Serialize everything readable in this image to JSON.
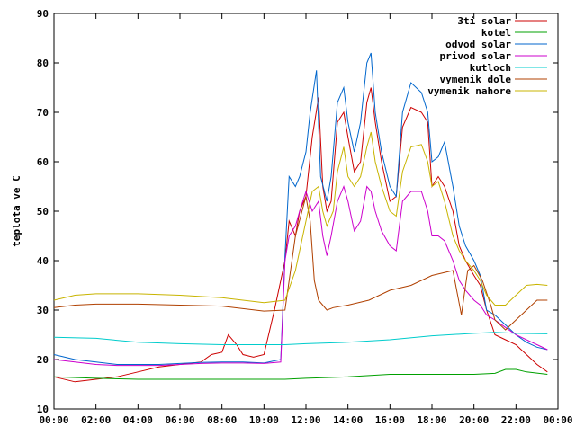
{
  "chart_data": {
    "type": "line",
    "title": "",
    "xlabel": "",
    "ylabel": "teplota ve C",
    "xlim": [
      "00:00",
      "24:00"
    ],
    "ylim": [
      10,
      90
    ],
    "grid": false,
    "legend_position": "top-right",
    "x_ticks": [
      "00:00",
      "02:00",
      "04:00",
      "06:00",
      "08:00",
      "10:00",
      "12:00",
      "14:00",
      "16:00",
      "18:00",
      "20:00",
      "22:00",
      "00:00"
    ],
    "y_ticks": [
      10,
      20,
      30,
      40,
      50,
      60,
      70,
      80,
      90
    ],
    "series": [
      {
        "name": "3ti solar",
        "color": "#cc0000",
        "points": [
          [
            0,
            16.5
          ],
          [
            1,
            15.5
          ],
          [
            2,
            16
          ],
          [
            3,
            16.5
          ],
          [
            4,
            17.5
          ],
          [
            5,
            18.5
          ],
          [
            6,
            19
          ],
          [
            7,
            19.5
          ],
          [
            7.5,
            21
          ],
          [
            8,
            21.5
          ],
          [
            8.3,
            25
          ],
          [
            8.7,
            23
          ],
          [
            9,
            21
          ],
          [
            9.5,
            20.5
          ],
          [
            10,
            21
          ],
          [
            10.5,
            30
          ],
          [
            11,
            40
          ],
          [
            11.2,
            48
          ],
          [
            11.5,
            45
          ],
          [
            11.7,
            50
          ],
          [
            12,
            53
          ],
          [
            12.3,
            65
          ],
          [
            12.6,
            73
          ],
          [
            12.8,
            55
          ],
          [
            13,
            50
          ],
          [
            13.2,
            52
          ],
          [
            13.5,
            68
          ],
          [
            13.8,
            70
          ],
          [
            14,
            65
          ],
          [
            14.3,
            58
          ],
          [
            14.6,
            60
          ],
          [
            14.9,
            72
          ],
          [
            15.1,
            75
          ],
          [
            15.3,
            68
          ],
          [
            15.6,
            60
          ],
          [
            16,
            52
          ],
          [
            16.3,
            53
          ],
          [
            16.6,
            67
          ],
          [
            17,
            71
          ],
          [
            17.5,
            70
          ],
          [
            17.8,
            68
          ],
          [
            18,
            55
          ],
          [
            18.3,
            57
          ],
          [
            18.6,
            55
          ],
          [
            19,
            50
          ],
          [
            19.3,
            43
          ],
          [
            19.6,
            40
          ],
          [
            20,
            37
          ],
          [
            20.3,
            35
          ],
          [
            20.6,
            30
          ],
          [
            21,
            25
          ],
          [
            21.5,
            24
          ],
          [
            22,
            23
          ],
          [
            22.5,
            21
          ],
          [
            23,
            19
          ],
          [
            23.5,
            17.5
          ]
        ]
      },
      {
        "name": "kotel",
        "color": "#00a000",
        "points": [
          [
            0,
            16.5
          ],
          [
            2,
            16.2
          ],
          [
            4,
            16
          ],
          [
            6,
            16
          ],
          [
            8,
            16
          ],
          [
            10,
            16
          ],
          [
            11,
            16
          ],
          [
            12,
            16.2
          ],
          [
            14,
            16.5
          ],
          [
            16,
            17
          ],
          [
            18,
            17
          ],
          [
            20,
            17
          ],
          [
            21,
            17.2
          ],
          [
            21.5,
            18
          ],
          [
            22,
            18
          ],
          [
            22.5,
            17.5
          ],
          [
            23.5,
            17
          ]
        ]
      },
      {
        "name": "odvod solar",
        "color": "#0066cc",
        "points": [
          [
            0,
            21
          ],
          [
            1,
            20
          ],
          [
            2,
            19.5
          ],
          [
            3,
            19
          ],
          [
            4,
            19
          ],
          [
            5,
            19
          ],
          [
            6,
            19.2
          ],
          [
            7,
            19.4
          ],
          [
            8,
            19.5
          ],
          [
            9,
            19.5
          ],
          [
            10,
            19.3
          ],
          [
            10.8,
            20
          ],
          [
            11,
            41
          ],
          [
            11.2,
            57
          ],
          [
            11.5,
            55
          ],
          [
            11.7,
            57
          ],
          [
            12,
            62
          ],
          [
            12.2,
            70
          ],
          [
            12.5,
            78.5
          ],
          [
            12.7,
            57
          ],
          [
            13,
            52
          ],
          [
            13.2,
            57
          ],
          [
            13.5,
            72
          ],
          [
            13.8,
            75
          ],
          [
            14,
            68
          ],
          [
            14.3,
            62
          ],
          [
            14.6,
            68
          ],
          [
            14.9,
            80
          ],
          [
            15.1,
            82
          ],
          [
            15.3,
            70
          ],
          [
            15.6,
            62
          ],
          [
            16,
            55
          ],
          [
            16.3,
            53
          ],
          [
            16.6,
            70
          ],
          [
            17,
            76
          ],
          [
            17.5,
            74
          ],
          [
            17.8,
            70
          ],
          [
            18,
            60
          ],
          [
            18.3,
            61
          ],
          [
            18.6,
            64
          ],
          [
            19,
            55
          ],
          [
            19.3,
            47
          ],
          [
            19.6,
            43
          ],
          [
            20,
            40
          ],
          [
            20.3,
            37
          ],
          [
            20.6,
            30
          ],
          [
            21,
            29
          ],
          [
            21.5,
            27
          ],
          [
            22,
            25
          ],
          [
            22.5,
            23.5
          ],
          [
            23,
            22.5
          ],
          [
            23.5,
            22
          ]
        ]
      },
      {
        "name": "privod solar",
        "color": "#cc00cc",
        "points": [
          [
            0,
            20
          ],
          [
            1,
            19.5
          ],
          [
            2,
            19
          ],
          [
            3,
            18.8
          ],
          [
            4,
            18.8
          ],
          [
            5,
            18.8
          ],
          [
            6,
            19
          ],
          [
            7,
            19.2
          ],
          [
            8,
            19.3
          ],
          [
            9,
            19.3
          ],
          [
            10,
            19.2
          ],
          [
            10.8,
            19.5
          ],
          [
            11,
            40
          ],
          [
            11.2,
            45
          ],
          [
            11.5,
            47
          ],
          [
            11.7,
            50
          ],
          [
            12,
            54
          ],
          [
            12.3,
            50
          ],
          [
            12.6,
            52
          ],
          [
            12.8,
            45
          ],
          [
            13,
            41
          ],
          [
            13.2,
            45
          ],
          [
            13.5,
            52
          ],
          [
            13.8,
            55
          ],
          [
            14,
            52
          ],
          [
            14.3,
            46
          ],
          [
            14.6,
            48
          ],
          [
            14.9,
            55
          ],
          [
            15.1,
            54
          ],
          [
            15.3,
            50
          ],
          [
            15.6,
            46
          ],
          [
            16,
            43
          ],
          [
            16.3,
            42
          ],
          [
            16.6,
            52
          ],
          [
            17,
            54
          ],
          [
            17.5,
            54
          ],
          [
            17.8,
            50
          ],
          [
            18,
            45
          ],
          [
            18.3,
            45
          ],
          [
            18.6,
            44
          ],
          [
            19,
            40
          ],
          [
            19.3,
            36
          ],
          [
            19.6,
            34
          ],
          [
            20,
            32
          ],
          [
            20.3,
            31
          ],
          [
            20.6,
            29
          ],
          [
            21,
            28
          ],
          [
            21.5,
            26.5
          ],
          [
            22,
            25
          ],
          [
            22.5,
            24
          ],
          [
            23,
            23
          ],
          [
            23.5,
            22
          ]
        ]
      },
      {
        "name": "kutloch",
        "color": "#00cccc",
        "points": [
          [
            0,
            24.5
          ],
          [
            2,
            24.3
          ],
          [
            4,
            23.5
          ],
          [
            6,
            23.2
          ],
          [
            8,
            23
          ],
          [
            10,
            23
          ],
          [
            11,
            23
          ],
          [
            12,
            23.2
          ],
          [
            14,
            23.5
          ],
          [
            16,
            24
          ],
          [
            18,
            24.8
          ],
          [
            20,
            25.3
          ],
          [
            21,
            25.5
          ],
          [
            22,
            25.3
          ],
          [
            23.5,
            25.2
          ]
        ]
      },
      {
        "name": "vymenik dole",
        "color": "#b04000",
        "points": [
          [
            0,
            30.5
          ],
          [
            1,
            31
          ],
          [
            2,
            31.2
          ],
          [
            4,
            31.2
          ],
          [
            6,
            31
          ],
          [
            8,
            30.8
          ],
          [
            10,
            29.8
          ],
          [
            11,
            30
          ],
          [
            11.5,
            45
          ],
          [
            12,
            53
          ],
          [
            12.2,
            48
          ],
          [
            12.4,
            36
          ],
          [
            12.6,
            32
          ],
          [
            13,
            30
          ],
          [
            13.3,
            30.5
          ],
          [
            14,
            31
          ],
          [
            15,
            32
          ],
          [
            16,
            34
          ],
          [
            17,
            35
          ],
          [
            18,
            37
          ],
          [
            19,
            38
          ],
          [
            19.4,
            29
          ],
          [
            19.7,
            38
          ],
          [
            20,
            39
          ],
          [
            20.4,
            36
          ],
          [
            20.8,
            31
          ],
          [
            21,
            28
          ],
          [
            21.5,
            26
          ],
          [
            22,
            28
          ],
          [
            22.5,
            30
          ],
          [
            23,
            32
          ],
          [
            23.5,
            32
          ]
        ]
      },
      {
        "name": "vymenik nahore",
        "color": "#c8b400",
        "points": [
          [
            0,
            32
          ],
          [
            1,
            33
          ],
          [
            2,
            33.3
          ],
          [
            4,
            33.3
          ],
          [
            6,
            33
          ],
          [
            8,
            32.5
          ],
          [
            10,
            31.5
          ],
          [
            11,
            32
          ],
          [
            11.5,
            38
          ],
          [
            12,
            48
          ],
          [
            12.3,
            54
          ],
          [
            12.6,
            55
          ],
          [
            12.8,
            50
          ],
          [
            13,
            47
          ],
          [
            13.3,
            50
          ],
          [
            13.5,
            58
          ],
          [
            13.8,
            63
          ],
          [
            14,
            57
          ],
          [
            14.3,
            55
          ],
          [
            14.6,
            57
          ],
          [
            14.9,
            63
          ],
          [
            15.1,
            66
          ],
          [
            15.3,
            60
          ],
          [
            15.6,
            55
          ],
          [
            16,
            50
          ],
          [
            16.3,
            49
          ],
          [
            16.6,
            58
          ],
          [
            17,
            63
          ],
          [
            17.5,
            63.5
          ],
          [
            17.8,
            60
          ],
          [
            18,
            55
          ],
          [
            18.3,
            56
          ],
          [
            18.6,
            52
          ],
          [
            19,
            45
          ],
          [
            19.3,
            42
          ],
          [
            19.6,
            40
          ],
          [
            20,
            38
          ],
          [
            20.3,
            36
          ],
          [
            20.6,
            33
          ],
          [
            21,
            31
          ],
          [
            21.5,
            31
          ],
          [
            22,
            33
          ],
          [
            22.5,
            35
          ],
          [
            23,
            35.2
          ],
          [
            23.5,
            35
          ]
        ]
      }
    ]
  }
}
